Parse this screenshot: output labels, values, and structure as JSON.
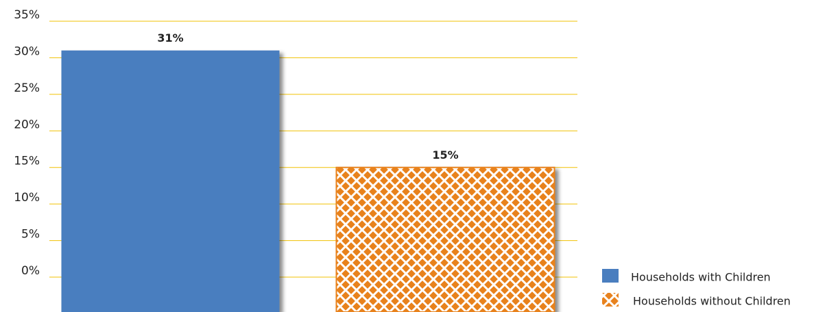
{
  "chart_data": {
    "type": "bar",
    "series": [
      {
        "name": "Households with Children",
        "color": "#4a7ebf",
        "values": [
          31
        ],
        "value_labels": [
          "31%"
        ]
      },
      {
        "name": "Households without Children",
        "color": "#e8821e",
        "pattern": "crosshatch",
        "values": [
          15
        ],
        "value_labels": [
          "15%"
        ]
      }
    ],
    "ylim": [
      0,
      35
    ],
    "yticks": [
      {
        "value": 0,
        "label": "0%"
      },
      {
        "value": 5,
        "label": "5%"
      },
      {
        "value": 10,
        "label": "10%"
      },
      {
        "value": 15,
        "label": "15%"
      },
      {
        "value": 20,
        "label": "20%"
      },
      {
        "value": 25,
        "label": "25%"
      },
      {
        "value": 30,
        "label": "30%"
      },
      {
        "value": 35,
        "label": "35%"
      }
    ],
    "grid": true,
    "grid_color": "#f0c000",
    "legend": "bottom-right"
  }
}
